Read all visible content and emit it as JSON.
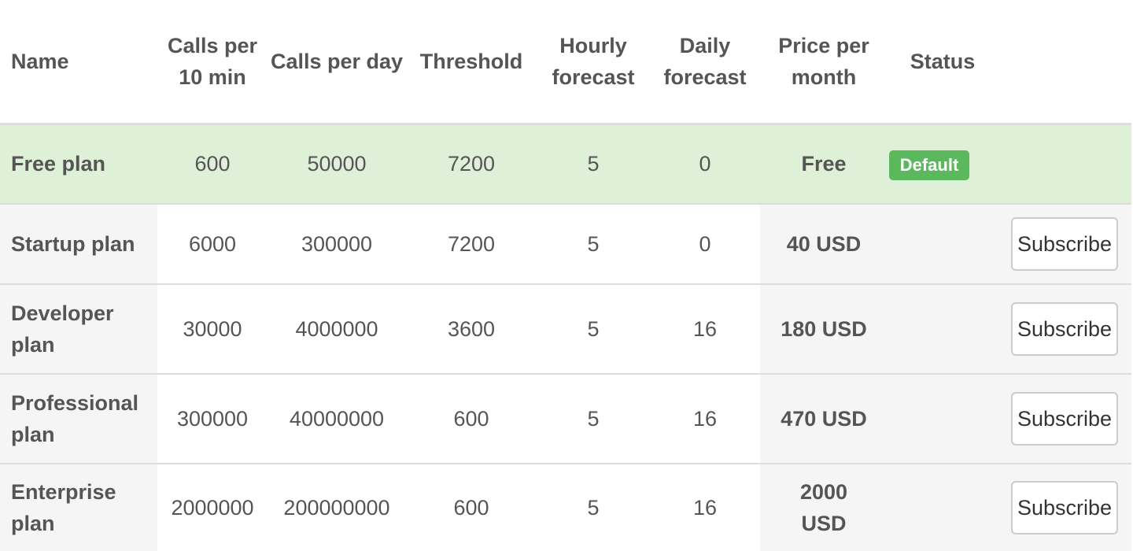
{
  "table": {
    "headers": {
      "name": "Name",
      "calls_10min": "Calls per 10 min",
      "calls_day": "Calls per day",
      "threshold": "Threshold",
      "hourly": "Hourly forecast",
      "daily": "Daily forecast",
      "price": "Price per month",
      "status": "Status"
    },
    "rows": [
      {
        "name": "Free plan",
        "calls_10min": "600",
        "calls_day": "50000",
        "threshold": "7200",
        "hourly": "5",
        "daily": "0",
        "price": "Free",
        "status": "Default",
        "action": ""
      },
      {
        "name": "Startup plan",
        "calls_10min": "6000",
        "calls_day": "300000",
        "threshold": "7200",
        "hourly": "5",
        "daily": "0",
        "price": "40 USD",
        "status": "",
        "action": "Subscribe"
      },
      {
        "name": "Developer plan",
        "calls_10min": "30000",
        "calls_day": "4000000",
        "threshold": "3600",
        "hourly": "5",
        "daily": "16",
        "price": "180 USD",
        "status": "",
        "action": "Subscribe"
      },
      {
        "name": "Professional plan",
        "calls_10min": "300000",
        "calls_day": "40000000",
        "threshold": "600",
        "hourly": "5",
        "daily": "16",
        "price": "470 USD",
        "status": "",
        "action": "Subscribe"
      },
      {
        "name": "Enterprise plan",
        "calls_10min": "2000000",
        "calls_day": "200000000",
        "threshold": "600",
        "hourly": "5",
        "daily": "16",
        "price": "2000 USD",
        "status": "",
        "action": "Subscribe"
      }
    ]
  },
  "colors": {
    "default_row_bg": "#dff0d8",
    "badge_bg": "#5cb85c",
    "shaded_col_bg": "#f5f5f5",
    "text": "#555555"
  }
}
